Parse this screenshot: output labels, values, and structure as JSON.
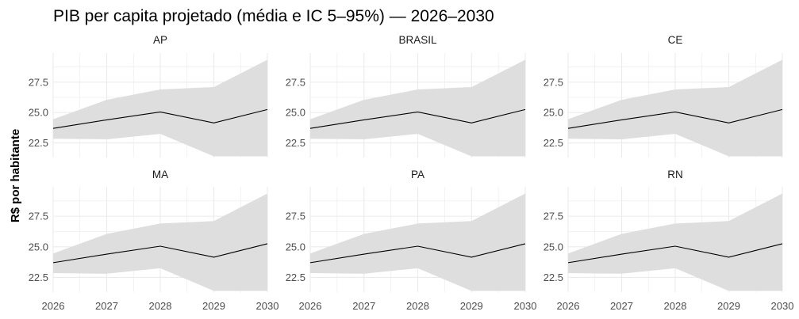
{
  "chart_data": {
    "type": "area",
    "title": "PIB per capita projetado (média e IC 5–95%) — 2026–2030",
    "ylabel": "R$ por habitante",
    "xlabel": "",
    "x": [
      2026,
      2027,
      2028,
      2029,
      2030
    ],
    "x_ticks": [
      "2026",
      "2027",
      "2028",
      "2029",
      "2030"
    ],
    "y_ticks": [
      "22.5",
      "25.0",
      "27.5"
    ],
    "y_tick_values": [
      22.5,
      25.0,
      27.5
    ],
    "ylim": [
      21.3,
      29.9
    ],
    "grid": true,
    "colors": {
      "band": "#dedede",
      "line": "#000000",
      "grid": "#ebebeb"
    },
    "panels": [
      {
        "name": "AP",
        "mean": [
          23.7,
          24.4,
          25.05,
          24.15,
          25.25
        ],
        "lower": [
          22.85,
          22.8,
          23.25,
          21.4,
          21.4
        ],
        "upper": [
          24.45,
          26.05,
          26.9,
          27.1,
          29.35
        ]
      },
      {
        "name": "BRASIL",
        "mean": [
          23.7,
          24.4,
          25.05,
          24.15,
          25.25
        ],
        "lower": [
          22.85,
          22.8,
          23.25,
          21.4,
          21.4
        ],
        "upper": [
          24.45,
          26.05,
          26.9,
          27.1,
          29.35
        ]
      },
      {
        "name": "CE",
        "mean": [
          23.7,
          24.4,
          25.05,
          24.15,
          25.25
        ],
        "lower": [
          22.85,
          22.8,
          23.25,
          21.4,
          21.4
        ],
        "upper": [
          24.45,
          26.05,
          26.9,
          27.1,
          29.35
        ]
      },
      {
        "name": "MA",
        "mean": [
          23.7,
          24.4,
          25.05,
          24.15,
          25.25
        ],
        "lower": [
          22.85,
          22.8,
          23.25,
          21.4,
          21.4
        ],
        "upper": [
          24.45,
          26.05,
          26.9,
          27.1,
          29.35
        ]
      },
      {
        "name": "PA",
        "mean": [
          23.7,
          24.4,
          25.05,
          24.15,
          25.25
        ],
        "lower": [
          22.85,
          22.8,
          23.25,
          21.4,
          21.4
        ],
        "upper": [
          24.45,
          26.05,
          26.9,
          27.1,
          29.35
        ]
      },
      {
        "name": "RN",
        "mean": [
          23.7,
          24.4,
          25.05,
          24.15,
          25.25
        ],
        "lower": [
          22.85,
          22.8,
          23.25,
          21.4,
          21.4
        ],
        "upper": [
          24.45,
          26.05,
          26.9,
          27.1,
          29.35
        ]
      }
    ]
  }
}
